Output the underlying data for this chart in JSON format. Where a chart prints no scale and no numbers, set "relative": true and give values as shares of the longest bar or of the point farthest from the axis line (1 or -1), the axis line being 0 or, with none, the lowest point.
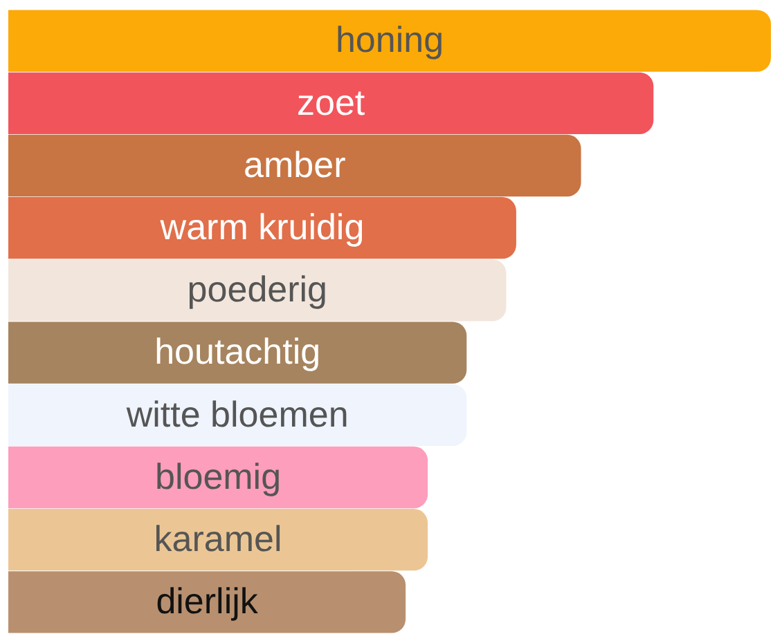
{
  "chart_data": {
    "type": "bar",
    "orientation": "horizontal",
    "relative": true,
    "categories": [
      "honing",
      "zoet",
      "amber",
      "warm kruidig",
      "poederig",
      "houtachtig",
      "witte bloemen",
      "bloemig",
      "karamel",
      "dierlijk"
    ],
    "values": [
      1,
      0.846,
      0.751,
      0.666,
      0.653,
      0.601,
      0.601,
      0.55,
      0.55,
      0.521
    ],
    "colors": [
      "#fcaa07",
      "#f2545b",
      "#c87543",
      "#e06f4a",
      "#f2e6dc",
      "#a6845f",
      "#eff4fd",
      "#fd9ebc",
      "#ebc694",
      "#b8906f"
    ]
  }
}
